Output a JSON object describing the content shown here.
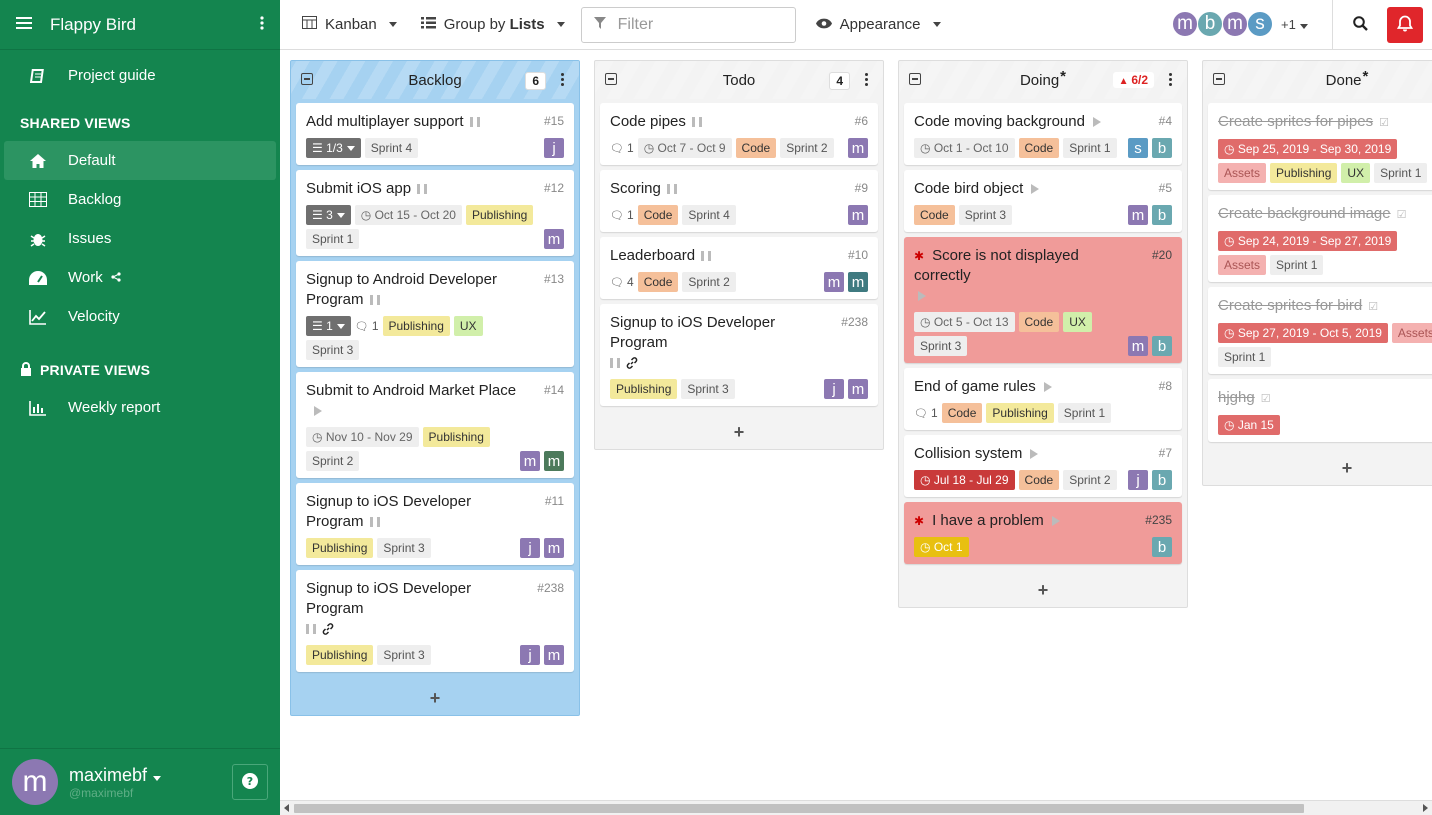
{
  "app": {
    "title": "Flappy Bird",
    "project_guide": "Project guide"
  },
  "sidebar": {
    "shared_label": "SHARED VIEWS",
    "shared": [
      {
        "label": "Default",
        "icon": "home-icon"
      },
      {
        "label": "Backlog",
        "icon": "table-icon"
      },
      {
        "label": "Issues",
        "icon": "bug-icon"
      },
      {
        "label": "Work",
        "icon": "dashboard-icon"
      },
      {
        "label": "Velocity",
        "icon": "chart-line-icon"
      }
    ],
    "private_label": "PRIVATE VIEWS",
    "private": [
      {
        "label": "Weekly report",
        "icon": "bar-chart-icon"
      }
    ],
    "user": {
      "name": "maximebf",
      "handle": "@maximebf",
      "avatar": "m"
    }
  },
  "toolbar": {
    "view": "Kanban",
    "group_prefix": "Group by",
    "group_value": "Lists",
    "filter_placeholder": "Filter",
    "appearance": "Appearance",
    "more_members": "+1"
  },
  "members": [
    {
      "l": "m",
      "c": "#8c78b2"
    },
    {
      "l": "b",
      "c": "#6aa8b0"
    },
    {
      "l": "m",
      "c": "#8c78b2"
    },
    {
      "l": "s",
      "c": "#5b9bc4"
    }
  ],
  "columns": [
    {
      "title": "Backlog",
      "count": "6",
      "cards": [
        {
          "title": "Add multiplayer support",
          "num": "#15",
          "icon": "pause",
          "meta": [
            {
              "t": "chk",
              "v": "1/3"
            },
            {
              "t": "",
              "v": "Sprint 4"
            }
          ],
          "avs": [
            {
              "l": "j",
              "c": "#8c78b2"
            }
          ]
        },
        {
          "title": "Submit iOS app",
          "num": "#12",
          "icon": "pause",
          "meta": [
            {
              "t": "chk",
              "v": "3"
            },
            {
              "t": "date",
              "v": "Oct 15 - Oct 20"
            },
            {
              "t": "pub",
              "v": "Publishing"
            },
            {
              "t": "",
              "v": "Sprint 1"
            }
          ],
          "avs": [
            {
              "l": "m",
              "c": "#8c78b2"
            }
          ]
        },
        {
          "title": "Signup to Android Developer Program",
          "num": "#13",
          "icon": "pause",
          "meta": [
            {
              "t": "chk",
              "v": "1"
            },
            {
              "t": "cmt",
              "v": "1"
            },
            {
              "t": "pub",
              "v": "Publishing"
            },
            {
              "t": "ux",
              "v": "UX"
            },
            {
              "t": "",
              "v": "Sprint 3"
            }
          ],
          "avs": []
        },
        {
          "title": "Submit to Android Market Place",
          "num": "#14",
          "icon": "play",
          "meta": [
            {
              "t": "date",
              "v": "Nov 10 - Nov 29"
            },
            {
              "t": "pub",
              "v": "Publishing"
            },
            {
              "t": "",
              "v": "Sprint 2"
            }
          ],
          "avs": [
            {
              "l": "m",
              "c": "#8c78b2"
            },
            {
              "l": "m",
              "c": "#4c7a5b"
            }
          ]
        },
        {
          "title": "Signup to iOS Developer Program",
          "num": "#11",
          "icon": "pause",
          "meta": [
            {
              "t": "pub",
              "v": "Publishing"
            },
            {
              "t": "",
              "v": "Sprint 3"
            }
          ],
          "avs": [
            {
              "l": "j",
              "c": "#8c78b2"
            },
            {
              "l": "m",
              "c": "#8c78b2"
            }
          ]
        },
        {
          "title": "Signup to iOS Developer Program",
          "num": "#238",
          "icon": "pause-link",
          "meta": [
            {
              "t": "pub",
              "v": "Publishing"
            },
            {
              "t": "",
              "v": "Sprint 3"
            }
          ],
          "avs": [
            {
              "l": "j",
              "c": "#8c78b2"
            },
            {
              "l": "m",
              "c": "#8c78b2"
            }
          ]
        }
      ]
    },
    {
      "title": "Todo",
      "count": "4",
      "cards": [
        {
          "title": "Code pipes",
          "num": "#6",
          "icon": "pause",
          "meta": [
            {
              "t": "cmt",
              "v": "1"
            },
            {
              "t": "date",
              "v": "Oct 7 - Oct 9"
            },
            {
              "t": "code",
              "v": "Code"
            },
            {
              "t": "",
              "v": "Sprint 2"
            }
          ],
          "avs": [
            {
              "l": "m",
              "c": "#8c78b2"
            }
          ]
        },
        {
          "title": "Scoring",
          "num": "#9",
          "icon": "pause",
          "meta": [
            {
              "t": "cmt",
              "v": "1"
            },
            {
              "t": "code",
              "v": "Code"
            },
            {
              "t": "",
              "v": "Sprint 4"
            }
          ],
          "avs": [
            {
              "l": "m",
              "c": "#8c78b2"
            }
          ]
        },
        {
          "title": "Leaderboard",
          "num": "#10",
          "icon": "pause",
          "meta": [
            {
              "t": "cmt",
              "v": "4"
            },
            {
              "t": "code",
              "v": "Code"
            },
            {
              "t": "",
              "v": "Sprint 2"
            }
          ],
          "avs": [
            {
              "l": "m",
              "c": "#8c78b2"
            },
            {
              "l": "m",
              "c": "#3f7a80"
            }
          ]
        },
        {
          "title": "Signup to iOS Developer Program",
          "num": "#238",
          "icon": "pause-link",
          "meta": [
            {
              "t": "pub",
              "v": "Publishing"
            },
            {
              "t": "",
              "v": "Sprint 3"
            }
          ],
          "avs": [
            {
              "l": "j",
              "c": "#8c78b2"
            },
            {
              "l": "m",
              "c": "#8c78b2"
            }
          ]
        }
      ]
    },
    {
      "title": "Doing",
      "count": "6/2",
      "cards": [
        {
          "title": "Code moving background",
          "num": "#4",
          "icon": "play",
          "meta": [
            {
              "t": "date",
              "v": "Oct 1 - Oct 10"
            },
            {
              "t": "code",
              "v": "Code"
            },
            {
              "t": "",
              "v": "Sprint 1"
            }
          ],
          "avs": [
            {
              "l": "s",
              "c": "#5b9bc4"
            },
            {
              "l": "b",
              "c": "#6aa8b0"
            }
          ]
        },
        {
          "title": "Code bird object",
          "num": "#5",
          "icon": "play",
          "meta": [
            {
              "t": "code",
              "v": "Code"
            },
            {
              "t": "",
              "v": "Sprint 3"
            }
          ],
          "avs": [
            {
              "l": "m",
              "c": "#8c78b2"
            },
            {
              "l": "b",
              "c": "#6aa8b0"
            }
          ]
        },
        {
          "title": "Score is not displayed correctly",
          "num": "#20",
          "icon": "play",
          "bug": true,
          "red": true,
          "meta": [
            {
              "t": "date",
              "v": "Oct 5 - Oct 13"
            },
            {
              "t": "code",
              "v": "Code"
            },
            {
              "t": "ux",
              "v": "UX"
            },
            {
              "t": "",
              "v": "Sprint 3"
            }
          ],
          "avs": [
            {
              "l": "m",
              "c": "#8c78b2"
            },
            {
              "l": "b",
              "c": "#6aa8b0"
            }
          ]
        },
        {
          "title": "End of game rules",
          "num": "#8",
          "icon": "play",
          "meta": [
            {
              "t": "cmt",
              "v": "1"
            },
            {
              "t": "code",
              "v": "Code"
            },
            {
              "t": "pub",
              "v": "Publishing"
            },
            {
              "t": "",
              "v": "Sprint 1"
            }
          ],
          "avs": []
        },
        {
          "title": "Collision system",
          "num": "#7",
          "icon": "play",
          "meta": [
            {
              "t": "overdue-dark",
              "v": "Jul 18 - Jul 29"
            },
            {
              "t": "code",
              "v": "Code"
            },
            {
              "t": "",
              "v": "Sprint 2"
            }
          ],
          "avs": [
            {
              "l": "j",
              "c": "#8c78b2"
            },
            {
              "l": "b",
              "c": "#6aa8b0"
            }
          ]
        },
        {
          "title": "I have a problem",
          "num": "#235",
          "icon": "play",
          "bug": true,
          "red": true,
          "meta": [
            {
              "t": "soon",
              "v": "Oct 1"
            }
          ],
          "avs": [
            {
              "l": "b",
              "c": "#6aa8b0"
            }
          ]
        }
      ]
    },
    {
      "title": "Done",
      "count": "",
      "cards": [
        {
          "title": "Create sprites for pipes",
          "num": "",
          "icon": "check",
          "done": true,
          "meta": [
            {
              "t": "overdue",
              "v": "Sep 25, 2019 - Sep 30, 2019"
            },
            {
              "t": "assets",
              "v": "Assets"
            },
            {
              "t": "pub",
              "v": "Publishing"
            },
            {
              "t": "ux",
              "v": "UX"
            },
            {
              "t": "",
              "v": "Sprint 1"
            }
          ],
          "avs": []
        },
        {
          "title": "Create background image",
          "num": "",
          "icon": "check",
          "done": true,
          "meta": [
            {
              "t": "overdue",
              "v": "Sep 24, 2019 - Sep 27, 2019"
            },
            {
              "t": "assets",
              "v": "Assets"
            },
            {
              "t": "",
              "v": "Sprint 1"
            }
          ],
          "avs": []
        },
        {
          "title": "Create sprites for bird",
          "num": "",
          "icon": "check",
          "done": true,
          "meta": [
            {
              "t": "overdue",
              "v": "Sep 27, 2019 - Oct 5, 2019"
            },
            {
              "t": "assets",
              "v": "Assets"
            },
            {
              "t": "",
              "v": "Sprint 1"
            }
          ],
          "avs": []
        },
        {
          "title": "hjghg",
          "num": "",
          "icon": "check",
          "done": true,
          "meta": [
            {
              "t": "overdue",
              "v": "Jan 15"
            }
          ],
          "avs": []
        }
      ]
    }
  ],
  "colors": {
    "sidebar": "#14854f",
    "accent_red": "#e0262b",
    "backlog_column": "#a6d2f1"
  }
}
